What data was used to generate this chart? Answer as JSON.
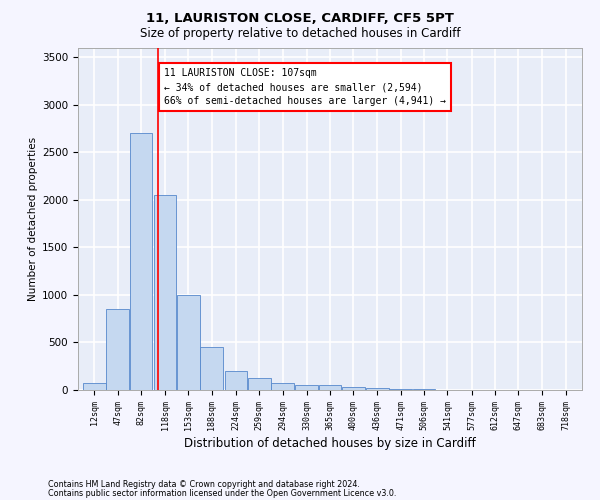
{
  "title1": "11, LAURISTON CLOSE, CARDIFF, CF5 5PT",
  "title2": "Size of property relative to detached houses in Cardiff",
  "xlabel": "Distribution of detached houses by size in Cardiff",
  "ylabel": "Number of detached properties",
  "footnote1": "Contains HM Land Registry data © Crown copyright and database right 2024.",
  "footnote2": "Contains public sector information licensed under the Open Government Licence v3.0.",
  "annotation_line1": "11 LAURISTON CLOSE: 107sqm",
  "annotation_line2": "← 34% of detached houses are smaller (2,594)",
  "annotation_line3": "66% of semi-detached houses are larger (4,941) →",
  "bar_color": "#c5d8f0",
  "bar_edge_color": "#5588cc",
  "red_line_x": 107,
  "categories": [
    12,
    47,
    82,
    118,
    153,
    188,
    224,
    259,
    294,
    330,
    365,
    400,
    436,
    471,
    506,
    541,
    577,
    612,
    647,
    683,
    718
  ],
  "bar_values": [
    75,
    850,
    2700,
    2050,
    1000,
    450,
    200,
    130,
    75,
    55,
    50,
    30,
    20,
    10,
    8,
    5,
    3,
    2,
    1,
    1,
    0
  ],
  "ylim": [
    0,
    3600
  ],
  "yticks": [
    0,
    500,
    1000,
    1500,
    2000,
    2500,
    3000,
    3500
  ],
  "bin_width": 35,
  "background_color": "#e8edf8",
  "fig_background_color": "#f5f5ff",
  "grid_color": "#ffffff"
}
